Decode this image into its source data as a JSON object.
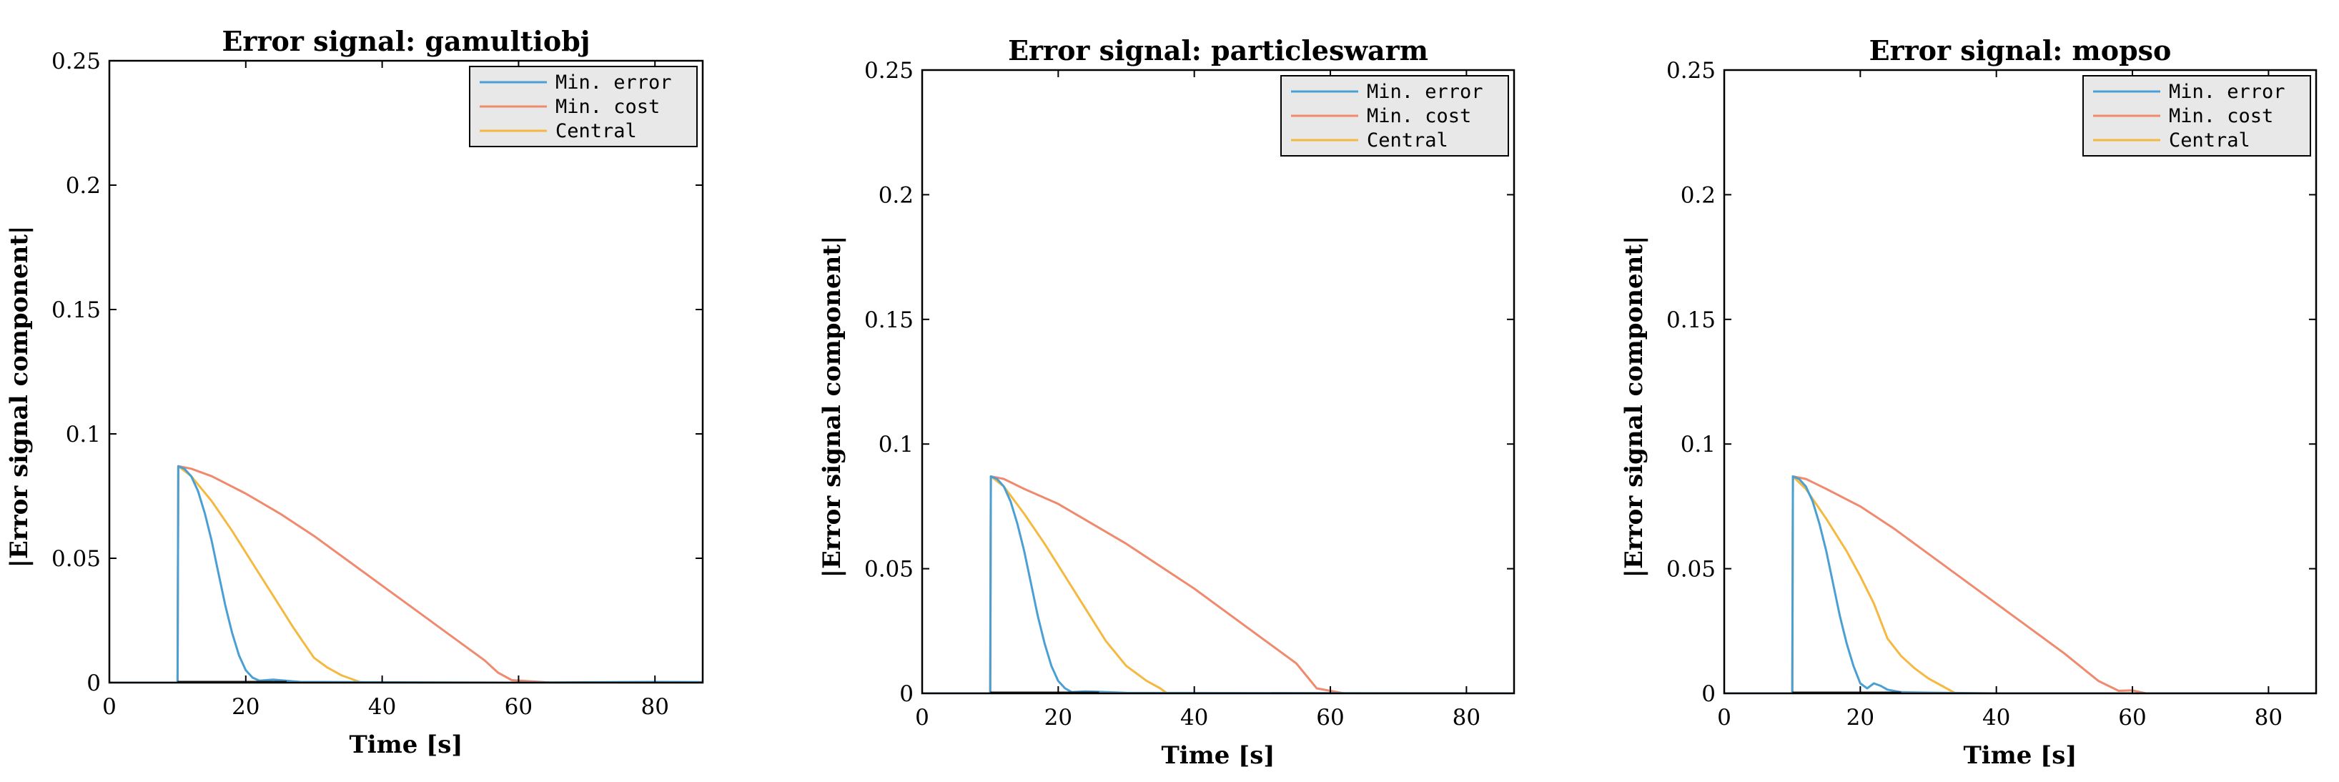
{
  "chart_data": [
    {
      "type": "line",
      "title": "Error signal: gamultiobj",
      "xlabel": "Time [s]",
      "ylabel": "|Error signal component|",
      "xlim": [
        0,
        87
      ],
      "ylim": [
        0,
        0.25
      ],
      "xticks": [
        0,
        20,
        40,
        60,
        80
      ],
      "yticks": [
        0,
        0.05,
        0.1,
        0.15,
        0.2,
        0.25
      ],
      "xtick_labels": [
        "0",
        "20",
        "40",
        "60",
        "80"
      ],
      "ytick_labels": [
        "0",
        "0.05",
        "0.1",
        "0.15",
        "0.2",
        "0.25"
      ],
      "grid": false,
      "legend_position": "top-right",
      "series": [
        {
          "name": "Min. error",
          "color": "#4a9fd4",
          "x": [
            0,
            10,
            10.1,
            11,
            12,
            13,
            14,
            15,
            16,
            17,
            18,
            19,
            20,
            21,
            22,
            24,
            28,
            36,
            60,
            80,
            87
          ],
          "y": [
            0,
            0,
            0.087,
            0.086,
            0.083,
            0.077,
            0.068,
            0.057,
            0.044,
            0.031,
            0.02,
            0.011,
            0.005,
            0.002,
            0.0008,
            0.0012,
            0.0003,
            0.0002,
            0,
            0.0003,
            0.0002
          ]
        },
        {
          "name": "Min. cost",
          "color": "#f08a6e",
          "x": [
            0,
            10,
            10.1,
            12,
            15,
            20,
            25,
            30,
            35,
            40,
            45,
            50,
            55,
            57,
            59,
            65,
            87
          ],
          "y": [
            0,
            0,
            0.087,
            0.086,
            0.083,
            0.076,
            0.068,
            0.059,
            0.049,
            0.039,
            0.029,
            0.019,
            0.009,
            0.004,
            0.001,
            0,
            0
          ]
        },
        {
          "name": "Central",
          "color": "#f5b942",
          "x": [
            0,
            10,
            10.1,
            12,
            15,
            18,
            21,
            24,
            27,
            30,
            32,
            34,
            36,
            37,
            40,
            87
          ],
          "y": [
            0,
            0,
            0.087,
            0.083,
            0.073,
            0.061,
            0.048,
            0.035,
            0.022,
            0.01,
            0.006,
            0.003,
            0.001,
            0,
            0,
            0
          ]
        }
      ]
    },
    {
      "type": "line",
      "title": "Error signal: particleswarm",
      "xlabel": "Time [s]",
      "ylabel": "|Error signal component|",
      "xlim": [
        0,
        87
      ],
      "ylim": [
        0,
        0.25
      ],
      "xticks": [
        0,
        20,
        40,
        60,
        80
      ],
      "yticks": [
        0,
        0.05,
        0.1,
        0.15,
        0.2,
        0.25
      ],
      "xtick_labels": [
        "0",
        "20",
        "40",
        "60",
        "80"
      ],
      "ytick_labels": [
        "0",
        "0.05",
        "0.1",
        "0.15",
        "0.2",
        "0.25"
      ],
      "grid": false,
      "legend_position": "top-right",
      "series": [
        {
          "name": "Min. error",
          "color": "#4a9fd4",
          "x": [
            0,
            10,
            10.1,
            11,
            12,
            13,
            14,
            15,
            16,
            17,
            18,
            19,
            20,
            21,
            22,
            24,
            30,
            87
          ],
          "y": [
            0,
            0,
            0.087,
            0.086,
            0.083,
            0.077,
            0.068,
            0.057,
            0.044,
            0.031,
            0.02,
            0.011,
            0.005,
            0.002,
            0.0005,
            0.0008,
            0.0002,
            0
          ]
        },
        {
          "name": "Min. cost",
          "color": "#f08a6e",
          "x": [
            0,
            10,
            10.1,
            12,
            15,
            20,
            25,
            30,
            35,
            40,
            45,
            50,
            55,
            58,
            62,
            87
          ],
          "y": [
            0,
            0,
            0.087,
            0.086,
            0.082,
            0.076,
            0.068,
            0.06,
            0.051,
            0.042,
            0.032,
            0.022,
            0.012,
            0.002,
            0,
            0
          ]
        },
        {
          "name": "Central",
          "color": "#f5b942",
          "x": [
            0,
            10,
            10.1,
            12,
            15,
            18,
            21,
            24,
            27,
            30,
            33,
            35,
            36,
            40,
            87
          ],
          "y": [
            0,
            0,
            0.087,
            0.083,
            0.072,
            0.06,
            0.047,
            0.034,
            0.021,
            0.011,
            0.005,
            0.002,
            0,
            0,
            0
          ]
        }
      ]
    },
    {
      "type": "line",
      "title": "Error signal: mopso",
      "xlabel": "Time [s]",
      "ylabel": "|Error signal component|",
      "xlim": [
        0,
        87
      ],
      "ylim": [
        0,
        0.25
      ],
      "xticks": [
        0,
        20,
        40,
        60,
        80
      ],
      "yticks": [
        0,
        0.05,
        0.1,
        0.15,
        0.2,
        0.25
      ],
      "xtick_labels": [
        "0",
        "20",
        "40",
        "60",
        "80"
      ],
      "ytick_labels": [
        "0",
        "0.05",
        "0.1",
        "0.15",
        "0.2",
        "0.25"
      ],
      "grid": false,
      "legend_position": "top-right",
      "series": [
        {
          "name": "Min. error",
          "color": "#4a9fd4",
          "x": [
            0,
            10,
            10.1,
            11,
            12,
            13,
            14,
            15,
            16,
            17,
            18,
            19,
            20,
            21,
            22,
            23,
            24,
            26,
            30,
            40,
            87
          ],
          "y": [
            0,
            0,
            0.087,
            0.086,
            0.083,
            0.077,
            0.068,
            0.057,
            0.044,
            0.031,
            0.02,
            0.011,
            0.004,
            0.002,
            0.004,
            0.003,
            0.0015,
            0.0005,
            0.0003,
            0,
            0
          ]
        },
        {
          "name": "Min. cost",
          "color": "#f08a6e",
          "x": [
            0,
            10,
            10.1,
            12,
            15,
            20,
            25,
            30,
            35,
            40,
            45,
            50,
            55,
            58,
            60,
            62,
            87
          ],
          "y": [
            0,
            0,
            0.087,
            0.086,
            0.082,
            0.075,
            0.066,
            0.056,
            0.046,
            0.036,
            0.026,
            0.016,
            0.005,
            0.001,
            0.0012,
            0,
            0
          ]
        },
        {
          "name": "Central",
          "color": "#f5b942",
          "x": [
            0,
            10,
            10.1,
            12,
            15,
            18,
            20,
            22,
            24,
            26,
            28,
            30,
            32,
            34,
            38,
            87
          ],
          "y": [
            0,
            0,
            0.087,
            0.082,
            0.07,
            0.057,
            0.047,
            0.036,
            0.022,
            0.015,
            0.01,
            0.006,
            0.003,
            0,
            0,
            0
          ]
        }
      ]
    }
  ]
}
